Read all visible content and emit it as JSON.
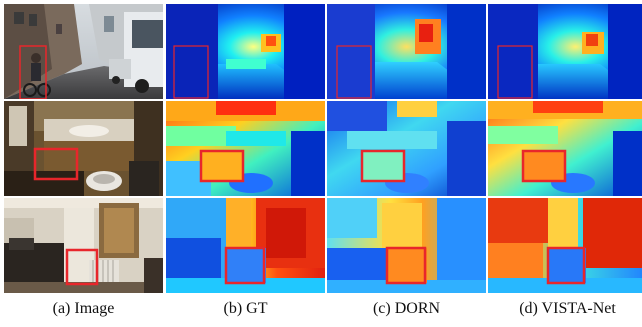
{
  "figure": {
    "captions": [
      "(a) Image",
      "(b) GT",
      "(c) DORN",
      "(d) VISTA-Net"
    ],
    "highlight_color": "#e8262b"
  }
}
